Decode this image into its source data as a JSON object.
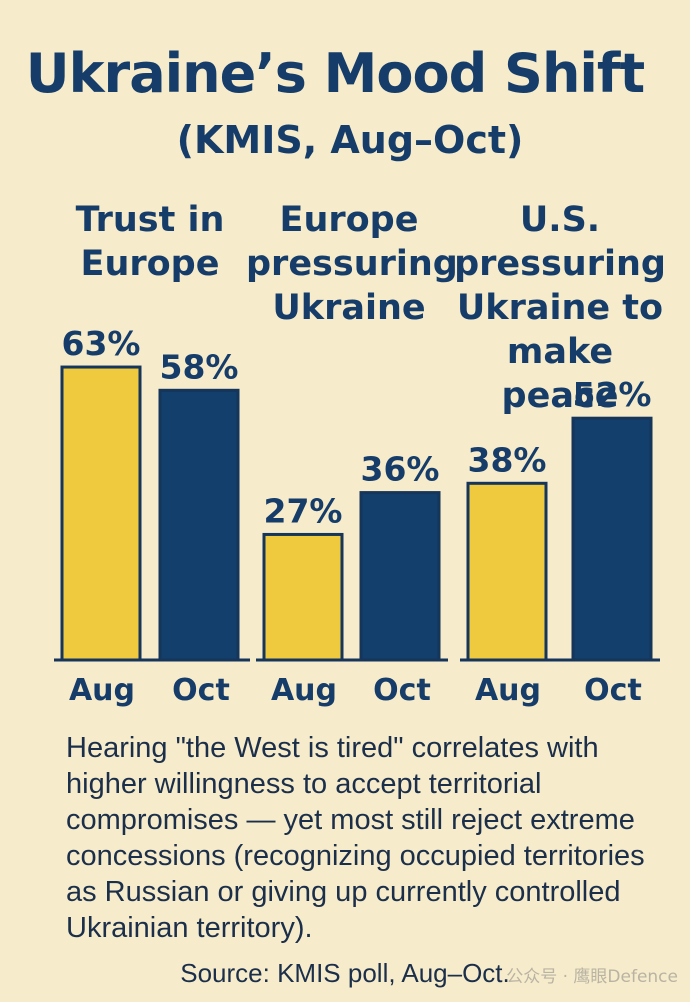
{
  "chart_data": {
    "type": "bar",
    "title": "Ukraine’s Mood Shift",
    "subtitle": "(KMIS, Aug–Oct)",
    "groups": [
      {
        "name": "Trust in Europe",
        "lines": [
          "Trust in",
          "Europe"
        ],
        "categories": [
          "Aug",
          "Oct"
        ],
        "values": [
          63,
          58
        ],
        "labels": [
          "63%",
          "58%"
        ]
      },
      {
        "name": "Europe pressuring Ukraine",
        "lines": [
          "Europe",
          "pressuring",
          "Ukraine"
        ],
        "categories": [
          "Aug",
          "Oct"
        ],
        "values": [
          27,
          36
        ],
        "labels": [
          "27%",
          "36%"
        ]
      },
      {
        "name": "U.S. pressuring Ukraine to make peace",
        "lines": [
          "U.S.",
          "pressuring",
          "Ukraine to",
          "make peace"
        ],
        "categories": [
          "Aug",
          "Oct"
        ],
        "values": [
          38,
          52
        ],
        "labels": [
          "38%",
          "52%"
        ]
      }
    ],
    "colors": {
      "aug": "#efc93e",
      "oct": "#133f6d"
    }
  },
  "caption": "Hearing \"the West is tired\" correlates with higher willingness to accept territorial compromises — yet most still reject extreme concessions (recognizing occupied territories as Russian or giving up currently controlled Ukrainian territory).",
  "source": "Source: KMIS poll, Aug–Oct.",
  "watermark": "公众号 · 鹰眼Defence"
}
